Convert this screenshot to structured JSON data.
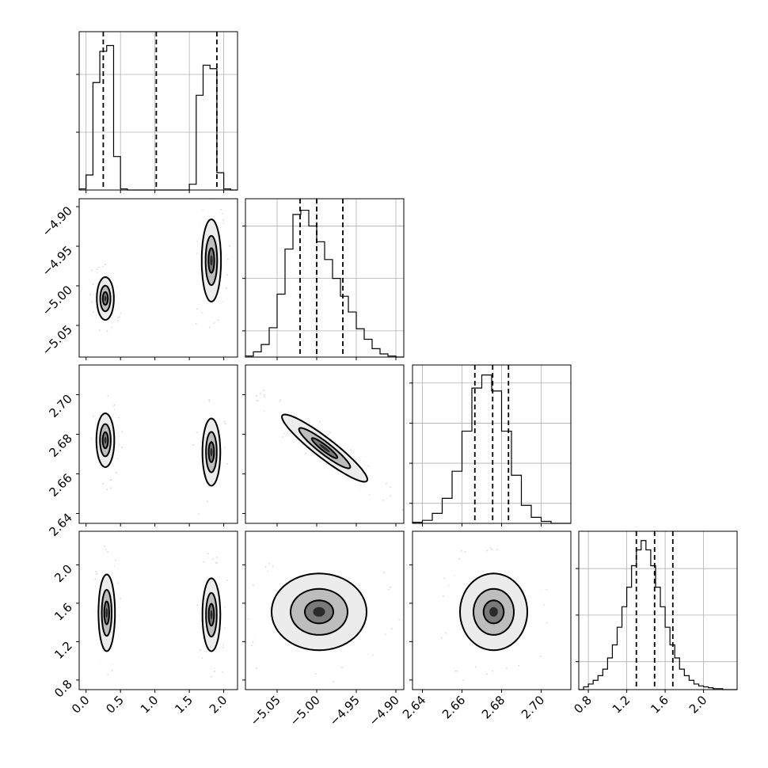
{
  "chart_data": {
    "type": "corner",
    "parameters": [
      {
        "range": [
          -0.1,
          2.2
        ],
        "ticks": [
          0.0,
          0.5,
          1.0,
          1.5,
          2.0
        ],
        "tick_labels": [
          "0.0",
          "0.5",
          "1.0",
          "1.5",
          "2.0"
        ]
      },
      {
        "range": [
          -5.09,
          -4.89
        ],
        "ticks": [
          -5.05,
          -5.0,
          -4.95,
          -4.9
        ],
        "tick_labels": [
          "−5.05",
          "−5.00",
          "−4.95",
          "−4.90"
        ],
        "row_ticks": [
          -5.05,
          -5.0,
          -4.95,
          -4.9
        ],
        "row_tick_labels": [
          "−5.05",
          "−5.00",
          "−4.95",
          "−4.90"
        ]
      },
      {
        "range": [
          2.635,
          2.715
        ],
        "ticks": [
          2.64,
          2.66,
          2.68,
          2.7
        ],
        "tick_labels": [
          "2.64",
          "2.66",
          "2.68",
          "2.70"
        ],
        "row_ticks": [
          2.64,
          2.66,
          2.68,
          2.7
        ],
        "row_tick_labels": [
          "2.64",
          "2.66",
          "2.68",
          "2.70"
        ]
      },
      {
        "range": [
          0.7,
          2.35
        ],
        "ticks": [
          0.8,
          1.2,
          1.6,
          2.0
        ],
        "tick_labels": [
          "0.8",
          "1.2",
          "1.6",
          "2.0"
        ],
        "row_ticks": [
          0.8,
          1.2,
          1.6,
          2.0
        ],
        "row_tick_labels": [
          "0.8",
          "1.2",
          "1.6",
          "2.0"
        ]
      }
    ],
    "histograms": [
      {
        "edges": [
          -0.1,
          0.0,
          0.1,
          0.2,
          0.3,
          0.4,
          0.5,
          0.6,
          0.7,
          0.8,
          0.9,
          1.0,
          1.1,
          1.2,
          1.3,
          1.4,
          1.5,
          1.6,
          1.7,
          1.8,
          1.9,
          2.0,
          2.1,
          2.2
        ],
        "counts": [
          1,
          13,
          93,
          120,
          125,
          29,
          1,
          0,
          0,
          0,
          0,
          0,
          0,
          0,
          0,
          0,
          5,
          82,
          108,
          105,
          15,
          1,
          0
        ],
        "ymax": 137,
        "yticks": [
          50,
          100
        ],
        "quantiles": [
          0.25,
          1.02,
          1.9
        ]
      },
      {
        "edges": [
          -5.09,
          -5.08,
          -5.07,
          -5.06,
          -5.05,
          -5.04,
          -5.03,
          -5.02,
          -5.01,
          -5.0,
          -4.99,
          -4.98,
          -4.97,
          -4.96,
          -4.95,
          -4.94,
          -4.93,
          -4.92,
          -4.91,
          -4.9,
          -4.89
        ],
        "counts": [
          1,
          5,
          12,
          28,
          60,
          103,
          136,
          140,
          125,
          110,
          93,
          75,
          58,
          43,
          27,
          17,
          8,
          3,
          1,
          0
        ],
        "ymax": 151,
        "yticks": [
          25,
          75,
          125
        ],
        "quantiles": [
          -5.021,
          -5.0,
          -4.967
        ]
      },
      {
        "edges": [
          2.635,
          2.64,
          2.645,
          2.65,
          2.655,
          2.66,
          2.665,
          2.67,
          2.675,
          2.68,
          2.685,
          2.69,
          2.695,
          2.7,
          2.705,
          2.71,
          2.715
        ],
        "counts": [
          1,
          3,
          10,
          25,
          52,
          92,
          135,
          148,
          132,
          92,
          48,
          18,
          6,
          2,
          0,
          0
        ],
        "ymax": 158,
        "yticks": [
          20,
          60,
          100,
          140
        ],
        "quantiles": [
          2.6665,
          2.6755,
          2.6835
        ]
      },
      {
        "edges": [
          0.7,
          0.75,
          0.8,
          0.85,
          0.9,
          0.95,
          1.0,
          1.05,
          1.1,
          1.15,
          1.2,
          1.25,
          1.3,
          1.35,
          1.4,
          1.45,
          1.5,
          1.55,
          1.6,
          1.65,
          1.7,
          1.75,
          1.8,
          1.85,
          1.9,
          1.95,
          2.0,
          2.05,
          2.1,
          2.15,
          2.2,
          2.25,
          2.3,
          2.35
        ],
        "counts": [
          0,
          3,
          6,
          10,
          15,
          22,
          34,
          48,
          67,
          89,
          110,
          133,
          150,
          160,
          150,
          133,
          110,
          89,
          67,
          48,
          34,
          22,
          15,
          10,
          6,
          4,
          3,
          2,
          1,
          1,
          0,
          0,
          0
        ],
        "ymax": 170,
        "yticks": [
          30,
          80,
          130
        ],
        "quantiles": [
          1.3,
          1.49,
          1.68
        ]
      }
    ],
    "contour_panels": [
      {
        "x": 0,
        "y": 1,
        "modes": [
          {
            "cx": 0.28,
            "cy": -5.016,
            "sx": 0.062,
            "sy": 0.0135,
            "rho": 0,
            "w": 0.5
          },
          {
            "cx": 1.82,
            "cy": -4.968,
            "sx": 0.07,
            "sy": 0.026,
            "rho": 0,
            "w": 0.5
          }
        ]
      },
      {
        "x": 0,
        "y": 2,
        "modes": [
          {
            "cx": 0.28,
            "cy": 2.677,
            "sx": 0.065,
            "sy": 0.0068,
            "rho": 0,
            "w": 0.5
          },
          {
            "cx": 1.82,
            "cy": 2.671,
            "sx": 0.065,
            "sy": 0.0085,
            "rho": 0,
            "w": 0.5
          }
        ]
      },
      {
        "x": 0,
        "y": 3,
        "modes": [
          {
            "cx": 0.3,
            "cy": 1.5,
            "sx": 0.06,
            "sy": 0.2,
            "rho": 0,
            "w": 0.5
          },
          {
            "cx": 1.82,
            "cy": 1.48,
            "sx": 0.065,
            "sy": 0.19,
            "rho": 0,
            "w": 0.5
          }
        ]
      },
      {
        "x": 1,
        "y": 2,
        "modes": [
          {
            "cx": -4.99,
            "cy": 2.673,
            "sx": 0.027,
            "sy": 0.0085,
            "rho": -0.93,
            "w": 1
          }
        ]
      },
      {
        "x": 1,
        "y": 3,
        "modes": [
          {
            "cx": -4.997,
            "cy": 1.51,
            "sx": 0.03,
            "sy": 0.2,
            "rho": 0,
            "w": 1
          }
        ]
      },
      {
        "x": 2,
        "y": 3,
        "modes": [
          {
            "cx": 2.676,
            "cy": 1.51,
            "sx": 0.0085,
            "sy": 0.2,
            "rho": 0,
            "w": 1
          }
        ]
      }
    ],
    "contour_levels": [
      0.39,
      0.86,
      0.99
    ],
    "grid": true,
    "legend": "none",
    "title": "",
    "xlabel": "",
    "ylabel": ""
  }
}
